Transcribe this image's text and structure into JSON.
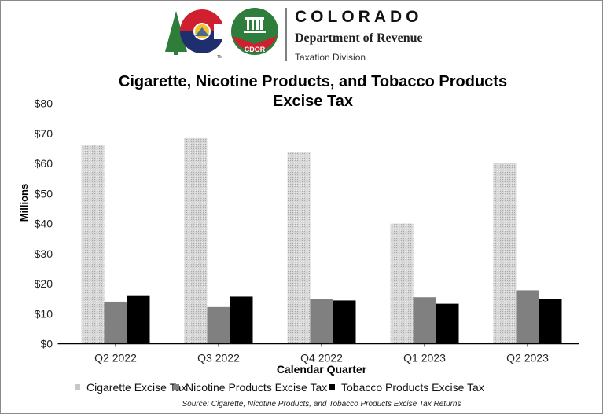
{
  "header": {
    "logo_text": "COLORADO",
    "department": "Department of Revenue",
    "division": "Taxation Division",
    "seal_text": "CDOR"
  },
  "chart_data": {
    "type": "bar",
    "title_line1": "Cigarette, Nicotine Products, and Tobacco Products",
    "title_line2": "Excise Tax",
    "xlabel": "Calendar Quarter",
    "ylabel": "Millions",
    "categories": [
      "Q2 2022",
      "Q3 2022",
      "Q4 2022",
      "Q1 2023",
      "Q2 2023"
    ],
    "ylim": [
      0,
      80
    ],
    "yticks": [
      "$0",
      "$10",
      "$20",
      "$30",
      "$40",
      "$50",
      "$60",
      "$70",
      "$80"
    ],
    "grid": false,
    "legend_position": "bottom",
    "series": [
      {
        "name": "Cigarette Excise Tax",
        "values": [
          66.1,
          68.4,
          63.9,
          40.0,
          60.2
        ],
        "color": "#c8c8c8",
        "pattern": "dotted-grid"
      },
      {
        "name": "Nicotine Products Excise Tax",
        "values": [
          14.0,
          12.2,
          15.0,
          15.5,
          17.8
        ],
        "color": "#808080"
      },
      {
        "name": "Tobacco Products Excise Tax",
        "values": [
          15.9,
          15.7,
          14.4,
          13.3,
          15.0
        ],
        "color": "#000000"
      }
    ],
    "source": "Source: Cigarette, Nicotine Products, and Tobacco Products Excise Tax Returns"
  }
}
